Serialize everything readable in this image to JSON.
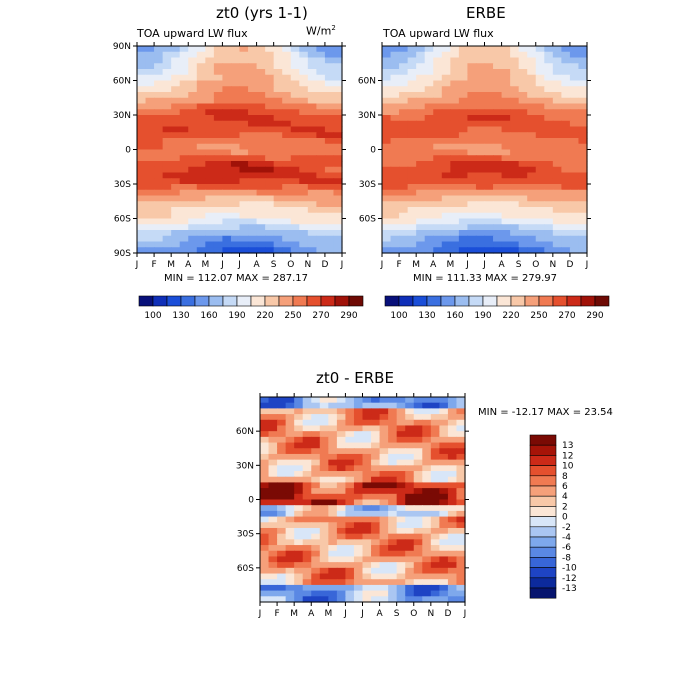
{
  "chart_data": [
    {
      "type": "heatmap",
      "panel": "model",
      "title": "zt0 (yrs 1-1)",
      "subtitle": "TOA upward LW flux",
      "units": "W/m",
      "units_superscript": "2",
      "x_ticks": [
        "J",
        "F",
        "M",
        "A",
        "M",
        "J",
        "J",
        "A",
        "S",
        "O",
        "N",
        "D",
        "J"
      ],
      "y_ticks": [
        "90N",
        "60N",
        "30N",
        "0",
        "30S",
        "60S",
        "90S"
      ],
      "stats": "MIN = 112.07  MAX = 287.17",
      "min": 112.07,
      "max": 287.17,
      "colorbar_labels": [
        "100",
        "130",
        "160",
        "190",
        "220",
        "250",
        "270",
        "290"
      ],
      "lat_profile": [
        {
          "lat": 90,
          "jan": 150,
          "jul": 230
        },
        {
          "lat": 75,
          "jan": 170,
          "jul": 240
        },
        {
          "lat": 60,
          "jan": 195,
          "jul": 245
        },
        {
          "lat": 45,
          "jan": 225,
          "jul": 255
        },
        {
          "lat": 30,
          "jan": 260,
          "jul": 275
        },
        {
          "lat": 15,
          "jan": 270,
          "jul": 262
        },
        {
          "lat": 0,
          "jan": 255,
          "jul": 248
        },
        {
          "lat": -15,
          "jan": 262,
          "jul": 282
        },
        {
          "lat": -30,
          "jan": 270,
          "jul": 268
        },
        {
          "lat": -45,
          "jan": 238,
          "jul": 225
        },
        {
          "lat": -60,
          "jan": 218,
          "jul": 200
        },
        {
          "lat": -75,
          "jan": 180,
          "jul": 150
        },
        {
          "lat": -90,
          "jan": 160,
          "jul": 122
        }
      ]
    },
    {
      "type": "heatmap",
      "panel": "obs",
      "title": "ERBE",
      "subtitle": "TOA upward LW flux",
      "x_ticks": [
        "J",
        "F",
        "M",
        "A",
        "M",
        "J",
        "J",
        "A",
        "S",
        "O",
        "N",
        "D",
        "J"
      ],
      "y_ticks": [
        "60N",
        "30N",
        "0",
        "30S",
        "60S"
      ],
      "stats": "MIN = 111.33  MAX = 279.97",
      "min": 111.33,
      "max": 279.97,
      "colorbar_labels": [
        "100",
        "130",
        "160",
        "190",
        "220",
        "250",
        "270",
        "290"
      ]
    },
    {
      "type": "heatmap",
      "panel": "diff",
      "title": "zt0 - ERBE",
      "x_ticks": [
        "J",
        "F",
        "M",
        "A",
        "M",
        "J",
        "J",
        "A",
        "S",
        "O",
        "N",
        "D",
        "J"
      ],
      "y_ticks": [
        "60N",
        "30N",
        "0",
        "30S",
        "60S"
      ],
      "stats": "MIN = -12.17  MAX =  23.54",
      "min": -12.17,
      "max": 23.54,
      "colorbar_labels": [
        "13",
        "12",
        "10",
        "8",
        "6",
        "4",
        "2",
        "0",
        "-2",
        "-4",
        "-6",
        "-8",
        "-10",
        "-12",
        "-13"
      ]
    }
  ],
  "colors": {
    "flux_scale": [
      "#08107a",
      "#0f2fb8",
      "#1a4ed8",
      "#3a6fe0",
      "#6c98ec",
      "#9bbdf0",
      "#c5daf6",
      "#e8eef8",
      "#fbe6d6",
      "#f8c8a8",
      "#f5a07a",
      "#f07a52",
      "#e5502e",
      "#cc2a18",
      "#a01208",
      "#6e0a04"
    ],
    "diff_scale": [
      "#7a0a04",
      "#a61408",
      "#cc2a18",
      "#e5502e",
      "#f07a52",
      "#f5a07a",
      "#f8c8a8",
      "#fbe6d6",
      "#d8e6f8",
      "#aac6f2",
      "#7ea8ec",
      "#5a88e4",
      "#3866d8",
      "#1e44c4",
      "#0c2a9c",
      "#06146e"
    ]
  }
}
